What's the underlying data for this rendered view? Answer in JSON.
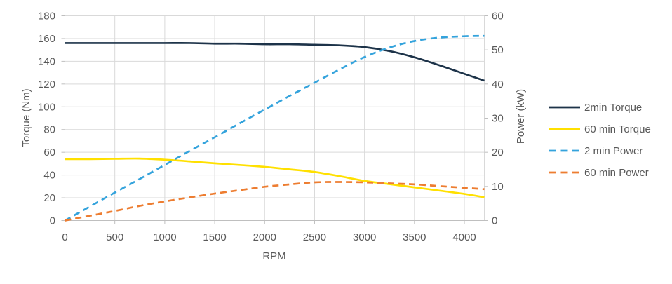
{
  "chart_data": {
    "type": "line",
    "title": "",
    "xlabel": "RPM",
    "ylabel_left": "Torque (Nm)",
    "ylabel_right": "Power (kW)",
    "grid": true,
    "legend_position": "right",
    "x": [
      0,
      250,
      500,
      750,
      1000,
      1250,
      1500,
      1750,
      2000,
      2250,
      2500,
      2750,
      3000,
      3250,
      3500,
      3750,
      4000,
      4200
    ],
    "series": [
      {
        "name": "2min Torque",
        "axis": "left",
        "style": "solid",
        "color": "#1d3349",
        "values": [
          156,
          156,
          156,
          156,
          156,
          156,
          155.5,
          155.5,
          155,
          155,
          154.5,
          154,
          152.5,
          149,
          143.5,
          136.5,
          129,
          123
        ]
      },
      {
        "name": "60 min Torque",
        "axis": "left",
        "style": "solid",
        "color": "#ffe000",
        "values": [
          54,
          54,
          54.3,
          54.5,
          53.5,
          52,
          50.3,
          48.8,
          47.2,
          45,
          42.7,
          39,
          34.9,
          32,
          29.2,
          26.3,
          23.4,
          20.5
        ]
      },
      {
        "name": "2 min Power",
        "axis": "right",
        "style": "dashed",
        "color": "#34a3dc",
        "values": [
          0,
          4.1,
          8.2,
          12.2,
          16.3,
          20.4,
          24.4,
          28.5,
          32.5,
          36.5,
          40.4,
          44.3,
          47.9,
          50.7,
          52.6,
          53.6,
          54.0,
          54.1
        ]
      },
      {
        "name": "60 min Power",
        "axis": "right",
        "style": "dashed",
        "color": "#ed7d31",
        "values": [
          0,
          1.4,
          2.8,
          4.3,
          5.6,
          6.8,
          7.9,
          8.9,
          9.9,
          10.6,
          11.2,
          11.3,
          11.2,
          10.9,
          10.6,
          10.1,
          9.6,
          9.2
        ]
      }
    ],
    "axes": {
      "x": {
        "min": 0,
        "max": 4200,
        "tick_step": 500,
        "tick_labels": [
          "0",
          "500",
          "1000",
          "1500",
          "2000",
          "2500",
          "3000",
          "3500",
          "4000"
        ]
      },
      "left": {
        "min": 0,
        "max": 180,
        "tick_step": 20,
        "tick_labels": [
          "180",
          "160",
          "140",
          "120",
          "100",
          "80",
          "60",
          "40",
          "20",
          "0"
        ]
      },
      "right": {
        "min": 0,
        "max": 60,
        "tick_step": 10,
        "tick_labels": [
          "60",
          "50",
          "40",
          "30",
          "20",
          "10",
          "0"
        ]
      }
    },
    "colors": {
      "grid": "#d9d9d9",
      "axis_line": "#bfbfbf",
      "text": "#595959",
      "background": "#ffffff"
    }
  }
}
